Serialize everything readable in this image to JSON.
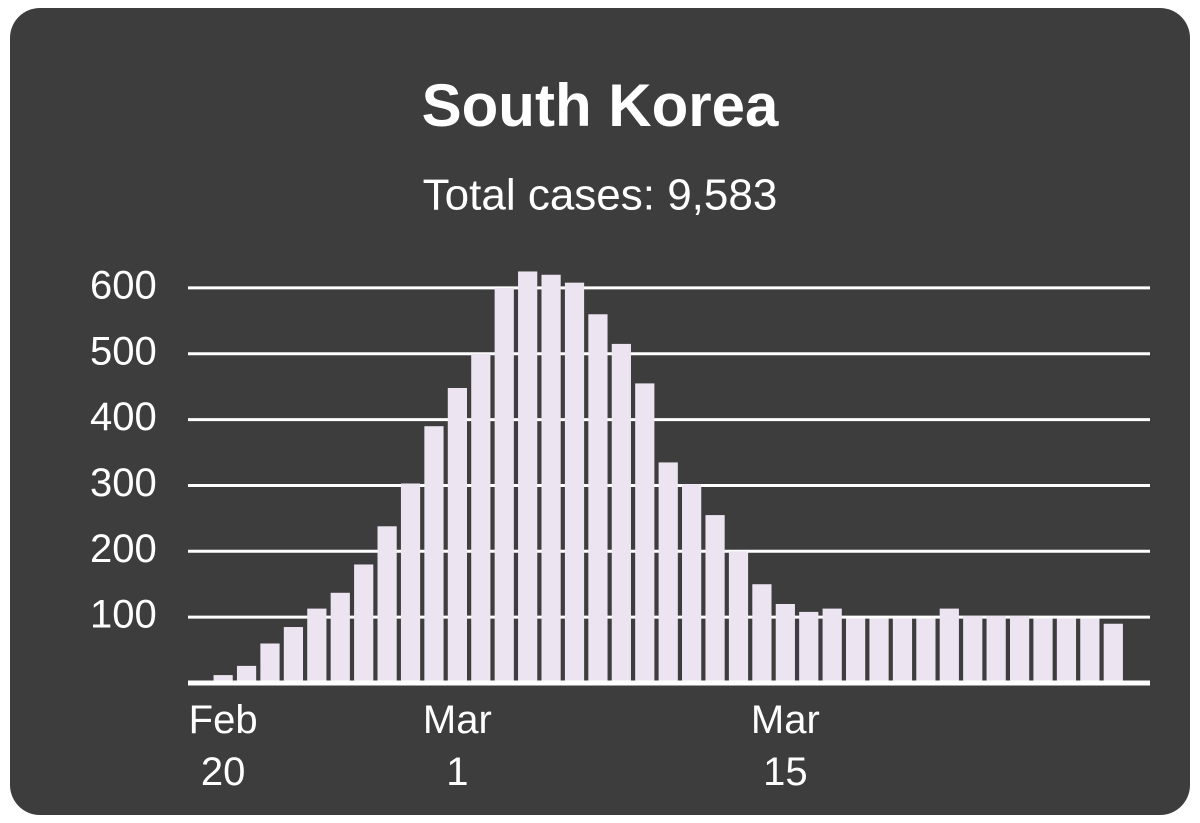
{
  "chart_data": {
    "type": "bar",
    "title": "South Korea",
    "subtitle": "Total cases: 9,583",
    "categories": [
      null,
      "Feb 20",
      null,
      null,
      null,
      null,
      null,
      null,
      null,
      null,
      null,
      "Mar 1",
      null,
      null,
      null,
      null,
      null,
      null,
      null,
      null,
      null,
      null,
      null,
      null,
      null,
      "Mar 15",
      null,
      null,
      null,
      null,
      null,
      null,
      null,
      null,
      null,
      null,
      null,
      null,
      null,
      null
    ],
    "values": [
      3,
      12,
      26,
      60,
      85,
      113,
      137,
      180,
      238,
      303,
      390,
      448,
      500,
      600,
      625,
      620,
      608,
      560,
      515,
      455,
      335,
      302,
      255,
      200,
      150,
      120,
      108,
      113,
      98,
      98,
      98,
      98,
      113,
      102,
      102,
      102,
      98,
      98,
      98,
      90
    ],
    "color": "#ede4f2",
    "ylim": [
      0,
      650
    ],
    "yticks": [
      100,
      200,
      300,
      400,
      500,
      600
    ],
    "grid": true
  }
}
